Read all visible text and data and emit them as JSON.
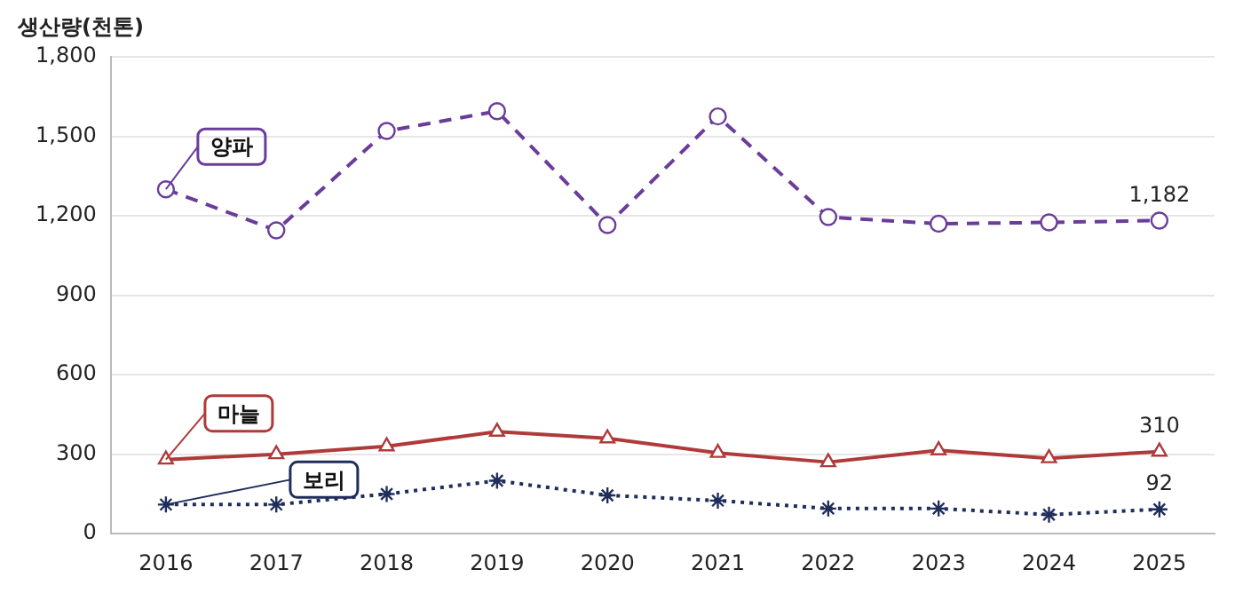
{
  "chart_data": {
    "type": "line",
    "ylabel": "생산량(천톤)",
    "categories": [
      "2016",
      "2017",
      "2018",
      "2019",
      "2020",
      "2021",
      "2022",
      "2023",
      "2024",
      "2025"
    ],
    "ylim": [
      0,
      1800
    ],
    "yticks": [
      {
        "value": 0,
        "label": "0"
      },
      {
        "value": 300,
        "label": "300"
      },
      {
        "value": 600,
        "label": "600"
      },
      {
        "value": 900,
        "label": "900"
      },
      {
        "value": 1200,
        "label": "1,200"
      },
      {
        "value": 1500,
        "label": "1,500"
      },
      {
        "value": 1800,
        "label": "1,800"
      }
    ],
    "grid": "y",
    "legend": false,
    "series": [
      {
        "name": "양파",
        "color": "#6a3d9a",
        "marker": "circle",
        "line_style": "dashed",
        "values": [
          1300,
          1145,
          1520,
          1595,
          1165,
          1575,
          1195,
          1170,
          1175,
          1182
        ],
        "value_labels": [
          null,
          null,
          null,
          null,
          null,
          null,
          null,
          null,
          null,
          "1,182"
        ]
      },
      {
        "name": "마늘",
        "color": "#b03a3a",
        "marker": "triangle",
        "line_style": "solid",
        "values": [
          280,
          300,
          330,
          385,
          360,
          305,
          270,
          315,
          285,
          310
        ],
        "value_labels": [
          null,
          null,
          null,
          null,
          null,
          null,
          null,
          null,
          null,
          "310"
        ]
      },
      {
        "name": "보리",
        "color": "#1f2d5a",
        "marker": "cross",
        "line_style": "dotted",
        "values": [
          110,
          110,
          150,
          200,
          145,
          125,
          95,
          95,
          72,
          92
        ],
        "value_labels": [
          null,
          null,
          null,
          null,
          null,
          null,
          null,
          null,
          null,
          "92"
        ]
      }
    ]
  }
}
